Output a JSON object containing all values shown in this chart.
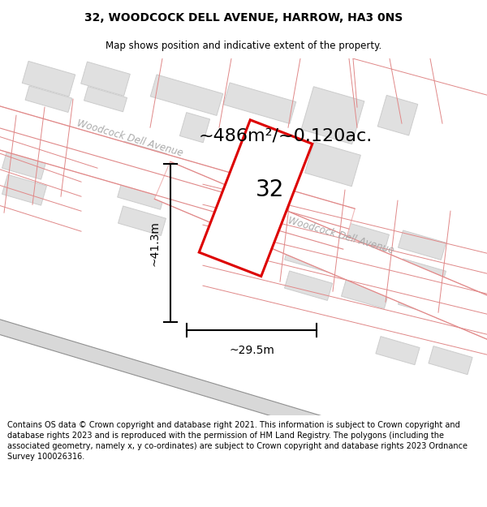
{
  "title": "32, WOODCOCK DELL AVENUE, HARROW, HA3 0NS",
  "subtitle": "Map shows position and indicative extent of the property.",
  "disclaimer": "Contains OS data © Crown copyright and database right 2021. This information is subject to Crown copyright and database rights 2023 and is reproduced with the permission of HM Land Registry. The polygons (including the associated geometry, namely x, y co-ordinates) are subject to Crown copyright and database rights 2023 Ordnance Survey 100026316.",
  "title_fontsize": 10,
  "subtitle_fontsize": 8.5,
  "disclaimer_fontsize": 7.0,
  "area_text": "~486m²/~0.120ac.",
  "property_label": "32",
  "dim_w_text": "~29.5m",
  "dim_h_text": "~41.3m",
  "road_color": "#f0b8b8",
  "road_edge_color": "#e08888",
  "property_outline_color": "#dd0000",
  "building_fill": "#e0e0e0",
  "building_outline": "#cccccc",
  "map_bg": "#ffffff",
  "street_color": "#aaaaaa",
  "dark_road_color": "#aaaaaa"
}
